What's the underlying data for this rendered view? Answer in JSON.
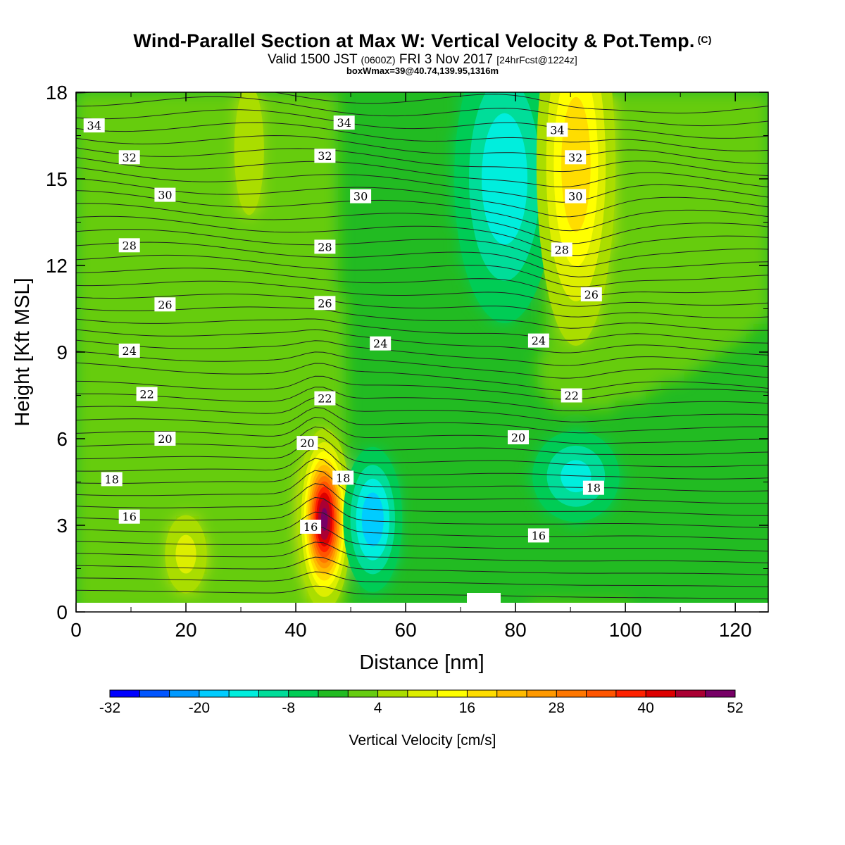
{
  "chart_data": {
    "type": "heatmap",
    "title": "Wind-Parallel Section at Max W: Vertical Velocity & Pot.Temp.",
    "title_mark": "(C)",
    "subtitle_main": "Valid 1500 JST",
    "subtitle_z": "(0600Z)",
    "subtitle_date": "FRI 3 Nov 2017",
    "subtitle_fcst": "[24hrFcst@1224z]",
    "subtitle2": "boxWmax=39@40.74,139.95,1316m",
    "xlabel": "Distance [nm]",
    "ylabel": "Height [Kft MSL]",
    "xlim": [
      0,
      126
    ],
    "ylim": [
      0,
      18
    ],
    "xticks": [
      "0",
      "20",
      "40",
      "60",
      "80",
      "100",
      "120"
    ],
    "yticks": [
      "0",
      "3",
      "6",
      "9",
      "12",
      "15",
      "18"
    ],
    "colorbar": {
      "label": "Vertical Velocity [cm/s]",
      "tick_labels": [
        "-32",
        "-20",
        "-8",
        "4",
        "16",
        "28",
        "40",
        "52"
      ],
      "levels": [
        -32,
        -28,
        -24,
        -20,
        -16,
        -12,
        -8,
        -4,
        0,
        4,
        8,
        12,
        16,
        20,
        24,
        28,
        32,
        36,
        40,
        44,
        48,
        52
      ],
      "colors": [
        "#0000ff",
        "#0055ff",
        "#0099ff",
        "#00ccff",
        "#00eedd",
        "#00dd99",
        "#00cc55",
        "#22bb22",
        "#66cc11",
        "#aadd00",
        "#ddee00",
        "#ffff00",
        "#ffdd00",
        "#ffbb00",
        "#ff9900",
        "#ff7700",
        "#ff5500",
        "#ff2200",
        "#dd0000",
        "#aa0033",
        "#770066"
      ]
    },
    "theta_contours": [
      {
        "label": "16",
        "h": 3.0
      },
      {
        "label": "18",
        "h": 4.5
      },
      {
        "label": "20",
        "h": 5.8
      },
      {
        "label": "22",
        "h": 7.4
      },
      {
        "label": "24",
        "h": 9.1
      },
      {
        "label": "26",
        "h": 10.6
      },
      {
        "label": "28",
        "h": 12.7
      },
      {
        "label": "30",
        "h": 14.4
      },
      {
        "label": "32",
        "h": 15.8
      },
      {
        "label": "34",
        "h": 17.0
      }
    ],
    "theta_label_positions": [
      {
        "label": "34",
        "x": 3.3,
        "y": 16.85
      },
      {
        "label": "34",
        "x": 48.8,
        "y": 16.95
      },
      {
        "label": "34",
        "x": 87.6,
        "y": 16.7
      },
      {
        "label": "32",
        "x": 9.7,
        "y": 15.75
      },
      {
        "label": "32",
        "x": 45.3,
        "y": 15.8
      },
      {
        "label": "32",
        "x": 90.9,
        "y": 15.75
      },
      {
        "label": "30",
        "x": 16.2,
        "y": 14.45
      },
      {
        "label": "30",
        "x": 51.8,
        "y": 14.4
      },
      {
        "label": "30",
        "x": 90.9,
        "y": 14.4
      },
      {
        "label": "28",
        "x": 9.7,
        "y": 12.7
      },
      {
        "label": "28",
        "x": 45.3,
        "y": 12.65
      },
      {
        "label": "28",
        "x": 88.4,
        "y": 12.55
      },
      {
        "label": "26",
        "x": 16.2,
        "y": 10.65
      },
      {
        "label": "26",
        "x": 45.3,
        "y": 10.7
      },
      {
        "label": "26",
        "x": 93.8,
        "y": 11.0
      },
      {
        "label": "24",
        "x": 9.7,
        "y": 9.05
      },
      {
        "label": "24",
        "x": 55.4,
        "y": 9.3
      },
      {
        "label": "24",
        "x": 84.2,
        "y": 9.4
      },
      {
        "label": "22",
        "x": 12.9,
        "y": 7.55
      },
      {
        "label": "22",
        "x": 45.3,
        "y": 7.4
      },
      {
        "label": "22",
        "x": 90.2,
        "y": 7.5
      },
      {
        "label": "20",
        "x": 16.2,
        "y": 6.0
      },
      {
        "label": "20",
        "x": 42.1,
        "y": 5.85
      },
      {
        "label": "20",
        "x": 80.5,
        "y": 6.05
      },
      {
        "label": "18",
        "x": 6.5,
        "y": 4.6
      },
      {
        "label": "18",
        "x": 48.6,
        "y": 4.65
      },
      {
        "label": "18",
        "x": 94.2,
        "y": 4.3
      },
      {
        "label": "16",
        "x": 9.7,
        "y": 3.3
      },
      {
        "label": "16",
        "x": 42.7,
        "y": 2.95
      },
      {
        "label": "16",
        "x": 84.2,
        "y": 2.65
      }
    ],
    "w_features": [
      {
        "x": 45.2,
        "y": 3.2,
        "peak": 50,
        "sx": 2.2,
        "sy": 1.4
      },
      {
        "x": 20.0,
        "y": 2.0,
        "peak": 10,
        "sx": 2.8,
        "sy": 1.0
      },
      {
        "x": 31.5,
        "y": 16.0,
        "peak": 6,
        "sx": 3.0,
        "sy": 2.5
      },
      {
        "x": 54.0,
        "y": 3.2,
        "peak": -20,
        "sx": 3.0,
        "sy": 1.4
      },
      {
        "x": 78.0,
        "y": 15.0,
        "peak": -16,
        "sx": 5.5,
        "sy": 3.0
      },
      {
        "x": 91.0,
        "y": 15.5,
        "peak": 20,
        "sx": 4.0,
        "sy": 3.5
      },
      {
        "x": 91.0,
        "y": 4.7,
        "peak": -14,
        "sx": 5.0,
        "sy": 1.0
      }
    ]
  }
}
